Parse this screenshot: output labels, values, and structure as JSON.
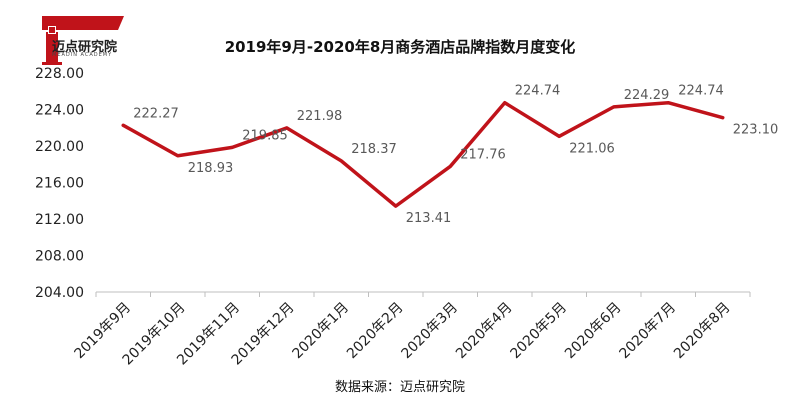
{
  "logo": {
    "name": "迈点研究院",
    "tagline": "MEADIN ACADEMY"
  },
  "chart_data": {
    "type": "line",
    "title": "2019年9月-2020年8月商务酒店品牌指数月度变化",
    "categories": [
      "2019年9月",
      "2019年10月",
      "2019年11月",
      "2019年12月",
      "2020年1月",
      "2020年2月",
      "2020年3月",
      "2020年4月",
      "2020年5月",
      "2020年6月",
      "2020年7月",
      "2020年8月"
    ],
    "series": [
      {
        "values": [
          222.27,
          218.93,
          219.85,
          221.98,
          218.37,
          213.41,
          217.76,
          224.74,
          221.06,
          224.29,
          224.74,
          223.1
        ],
        "labels": [
          "222.27",
          "218.93",
          "219.85",
          "221.98",
          "218.37",
          "213.41",
          "217.76",
          "224.74",
          "221.06",
          "224.29",
          "224.74",
          "223.10"
        ]
      }
    ],
    "yticks": [
      "204.00",
      "208.00",
      "212.00",
      "216.00",
      "220.00",
      "224.00",
      "228.00"
    ],
    "ylim": [
      204,
      228
    ],
    "xlabel": "",
    "ylabel": "",
    "grid": false,
    "legend": "none",
    "line_color": "#C0131A"
  },
  "source": "数据来源：迈点研究院"
}
